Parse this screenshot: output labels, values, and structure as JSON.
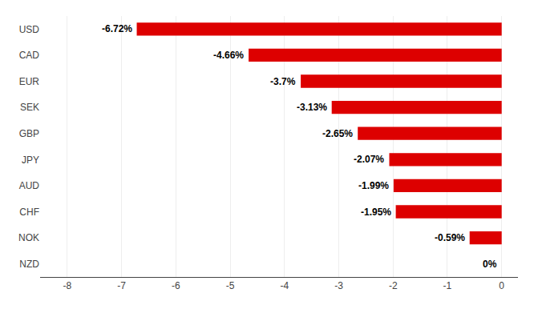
{
  "chart_data": {
    "type": "bar",
    "orientation": "horizontal",
    "categories": [
      "NZD",
      "NOK",
      "CHF",
      "AUD",
      "JPY",
      "GBP",
      "SEK",
      "EUR",
      "CAD",
      "USD"
    ],
    "values": [
      0.0,
      -0.59,
      -1.95,
      -1.99,
      -2.07,
      -2.65,
      -3.13,
      -3.7,
      -4.66,
      -6.72
    ],
    "value_labels": [
      "0%",
      "-0.59%",
      "-1.95%",
      "-1.99%",
      "-2.07%",
      "-2.65%",
      "-3.13%",
      "-3.7%",
      "-4.66%",
      "-6.72%"
    ],
    "data_labels": true,
    "color": "#dd0000",
    "xlim": [
      -8.5,
      0.3
    ],
    "xticks": [
      -8,
      -7,
      -6,
      -5,
      -4,
      -3,
      -2,
      -1,
      0
    ],
    "grid": true
  }
}
